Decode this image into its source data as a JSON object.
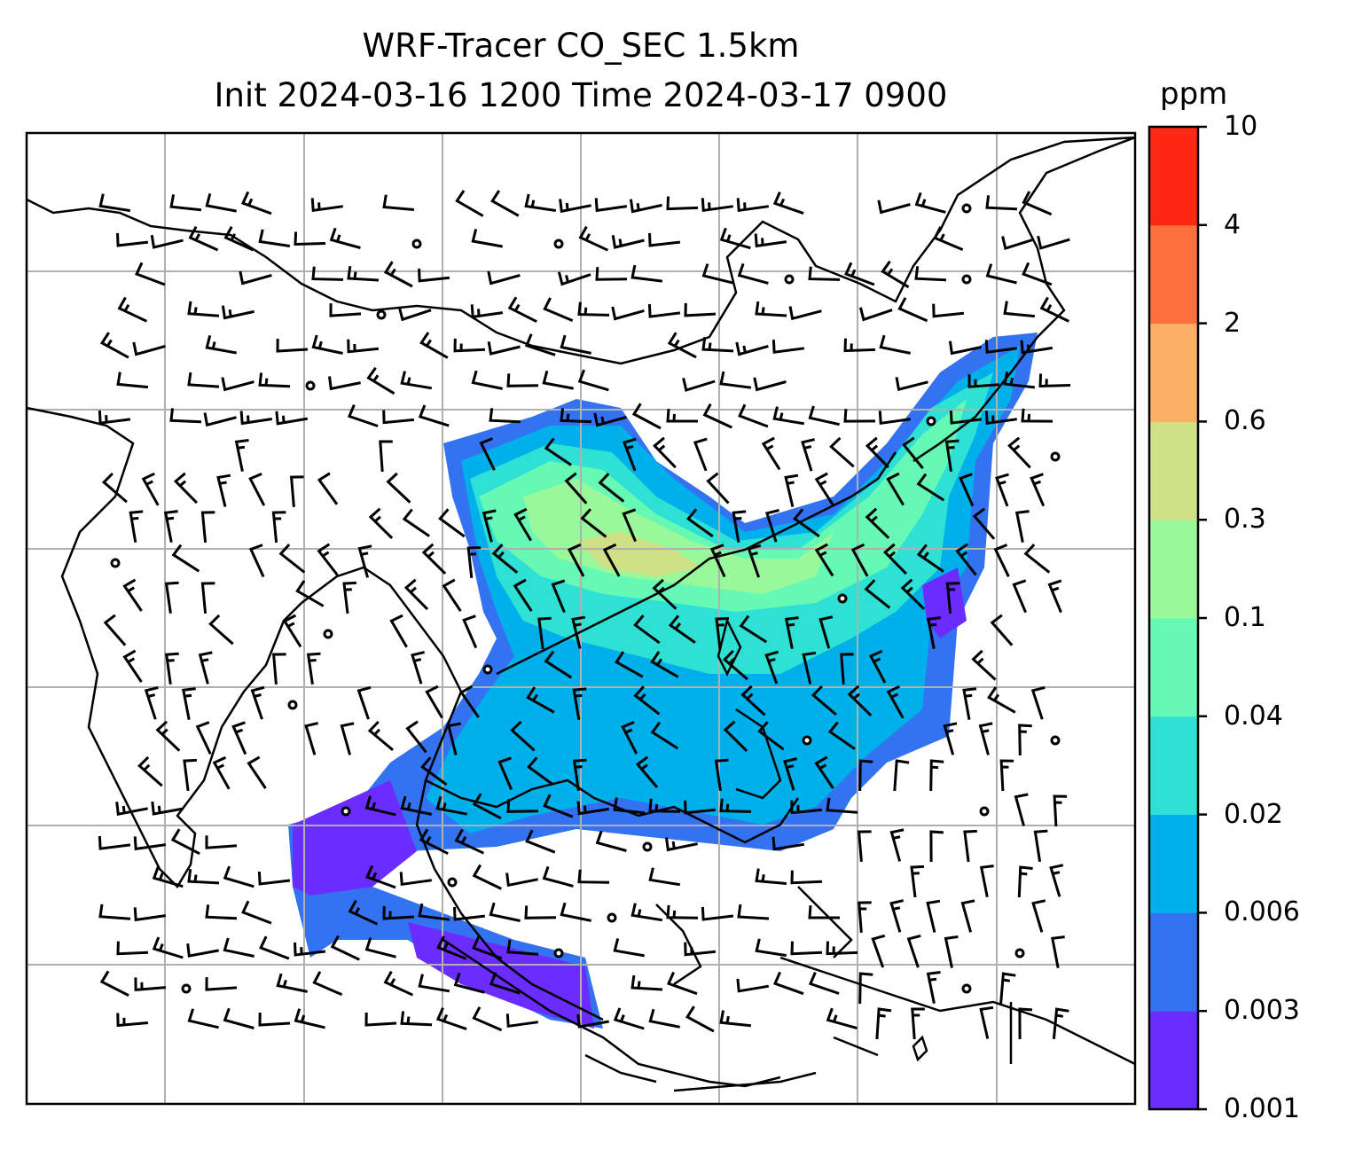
{
  "title_line1": "WRF-Tracer CO_SEC 1.5km",
  "title_line2": "Init 2024-03-16 1200 Time 2024-03-17 0900",
  "colorbar": {
    "unit": "ppm",
    "ticks": [
      "0.001",
      "0.003",
      "0.006",
      "0.02",
      "0.04",
      "0.1",
      "0.3",
      "0.6",
      "2",
      "4",
      "10"
    ],
    "colors": [
      "#6a2cff",
      "#3373f2",
      "#00b0ea",
      "#2fe0d4",
      "#66f9b6",
      "#99f89a",
      "#cfe087",
      "#fbb065",
      "#fd703e",
      "#ff2815"
    ]
  },
  "chart_data": {
    "type": "heatmap",
    "variable": "CO_SEC",
    "unit": "ppm",
    "levels": [
      0.001,
      0.003,
      0.006,
      0.02,
      0.04,
      0.1,
      0.3,
      0.6,
      2,
      4,
      10
    ],
    "overlay": "wind barbs",
    "gridlines": true
  }
}
